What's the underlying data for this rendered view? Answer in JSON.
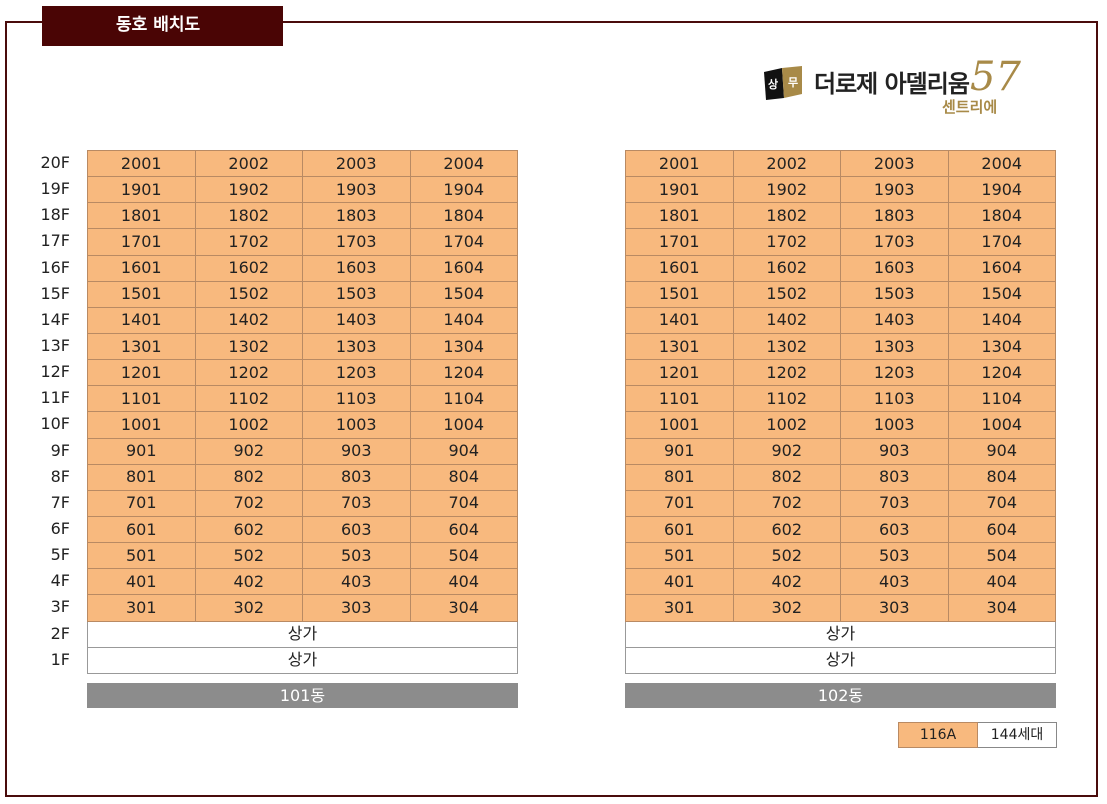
{
  "header": {
    "title": "동호 배치도"
  },
  "logo": {
    "badge": "상무",
    "name": "더로제 아델리움",
    "number": "57",
    "sub": "센트리에"
  },
  "floors": [
    "20F",
    "19F",
    "18F",
    "17F",
    "16F",
    "15F",
    "14F",
    "13F",
    "12F",
    "11F",
    "10F",
    "9F",
    "8F",
    "7F",
    "6F",
    "5F",
    "4F",
    "3F",
    "2F",
    "1F"
  ],
  "buildings": [
    {
      "name": "101동",
      "units": [
        [
          "2001",
          "2002",
          "2003",
          "2004"
        ],
        [
          "1901",
          "1902",
          "1903",
          "1904"
        ],
        [
          "1801",
          "1802",
          "1803",
          "1804"
        ],
        [
          "1701",
          "1702",
          "1703",
          "1704"
        ],
        [
          "1601",
          "1602",
          "1603",
          "1604"
        ],
        [
          "1501",
          "1502",
          "1503",
          "1504"
        ],
        [
          "1401",
          "1402",
          "1403",
          "1404"
        ],
        [
          "1301",
          "1302",
          "1303",
          "1304"
        ],
        [
          "1201",
          "1202",
          "1203",
          "1204"
        ],
        [
          "1101",
          "1102",
          "1103",
          "1104"
        ],
        [
          "1001",
          "1002",
          "1003",
          "1004"
        ],
        [
          "901",
          "902",
          "903",
          "904"
        ],
        [
          "801",
          "802",
          "803",
          "804"
        ],
        [
          "701",
          "702",
          "703",
          "704"
        ],
        [
          "601",
          "602",
          "603",
          "604"
        ],
        [
          "501",
          "502",
          "503",
          "504"
        ],
        [
          "401",
          "402",
          "403",
          "404"
        ],
        [
          "301",
          "302",
          "303",
          "304"
        ]
      ],
      "shops": [
        "상가",
        "상가"
      ]
    },
    {
      "name": "102동",
      "units": [
        [
          "2001",
          "2002",
          "2003",
          "2004"
        ],
        [
          "1901",
          "1902",
          "1903",
          "1904"
        ],
        [
          "1801",
          "1802",
          "1803",
          "1804"
        ],
        [
          "1701",
          "1702",
          "1703",
          "1704"
        ],
        [
          "1601",
          "1602",
          "1603",
          "1604"
        ],
        [
          "1501",
          "1502",
          "1503",
          "1504"
        ],
        [
          "1401",
          "1402",
          "1403",
          "1404"
        ],
        [
          "1301",
          "1302",
          "1303",
          "1304"
        ],
        [
          "1201",
          "1202",
          "1203",
          "1204"
        ],
        [
          "1101",
          "1102",
          "1103",
          "1104"
        ],
        [
          "1001",
          "1002",
          "1003",
          "1004"
        ],
        [
          "901",
          "902",
          "903",
          "904"
        ],
        [
          "801",
          "802",
          "803",
          "804"
        ],
        [
          "701",
          "702",
          "703",
          "704"
        ],
        [
          "601",
          "602",
          "603",
          "604"
        ],
        [
          "501",
          "502",
          "503",
          "504"
        ],
        [
          "401",
          "402",
          "403",
          "404"
        ],
        [
          "301",
          "302",
          "303",
          "304"
        ]
      ],
      "shops": [
        "상가",
        "상가"
      ]
    }
  ],
  "legend": {
    "type": "116A",
    "count": "144세대"
  },
  "colors": {
    "unit": "#f8b97e",
    "frame": "#4a0c0c",
    "building_bar": "#8c8c8c",
    "gold": "#a88a48"
  }
}
